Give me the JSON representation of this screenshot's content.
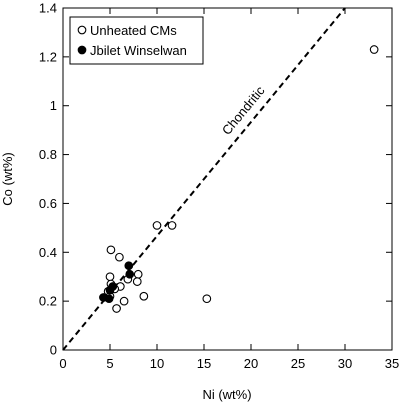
{
  "chart_data": {
    "type": "scatter",
    "xlabel": "Ni (wt%)",
    "ylabel": "Co (wt%)",
    "xlim": [
      0,
      35
    ],
    "ylim": [
      0,
      1.4
    ],
    "xticks": [
      0,
      5,
      10,
      15,
      20,
      25,
      30,
      35
    ],
    "yticks": [
      0,
      0.2,
      0.4,
      0.6,
      0.8,
      1.0,
      1.2,
      1.4
    ],
    "xtick_labels": [
      "0",
      "5",
      "10",
      "15",
      "20",
      "25",
      "30",
      "35"
    ],
    "ytick_labels": [
      "0",
      "0.2",
      "0.4",
      "0.6",
      "0.8",
      "1",
      "1.2",
      "1.4"
    ],
    "legend_position": "top-left",
    "series": [
      {
        "name": "Unheated CMs",
        "marker": "open-circle",
        "color": "#000000",
        "points": [
          {
            "x": 33.1,
            "y": 1.23
          },
          {
            "x": 10.0,
            "y": 0.51
          },
          {
            "x": 11.6,
            "y": 0.51
          },
          {
            "x": 5.1,
            "y": 0.41
          },
          {
            "x": 6.0,
            "y": 0.38
          },
          {
            "x": 5.0,
            "y": 0.3
          },
          {
            "x": 6.9,
            "y": 0.29
          },
          {
            "x": 8.0,
            "y": 0.31
          },
          {
            "x": 7.9,
            "y": 0.28
          },
          {
            "x": 5.1,
            "y": 0.27
          },
          {
            "x": 6.1,
            "y": 0.26
          },
          {
            "x": 5.5,
            "y": 0.25
          },
          {
            "x": 4.8,
            "y": 0.24
          },
          {
            "x": 5.0,
            "y": 0.22
          },
          {
            "x": 6.5,
            "y": 0.2
          },
          {
            "x": 8.6,
            "y": 0.22
          },
          {
            "x": 15.3,
            "y": 0.21
          },
          {
            "x": 5.7,
            "y": 0.17
          }
        ]
      },
      {
        "name": "Jbilet Winselwan",
        "marker": "filled-circle",
        "color": "#000000",
        "points": [
          {
            "x": 7.0,
            "y": 0.345
          },
          {
            "x": 7.1,
            "y": 0.31
          },
          {
            "x": 5.3,
            "y": 0.26
          },
          {
            "x": 5.0,
            "y": 0.245
          },
          {
            "x": 4.3,
            "y": 0.215
          },
          {
            "x": 4.9,
            "y": 0.21
          }
        ]
      }
    ],
    "reference_line": {
      "label": "Chondritic",
      "style": "dashed",
      "from": {
        "x": 0,
        "y": 0
      },
      "to": {
        "x": 30,
        "y": 1.4
      }
    }
  }
}
